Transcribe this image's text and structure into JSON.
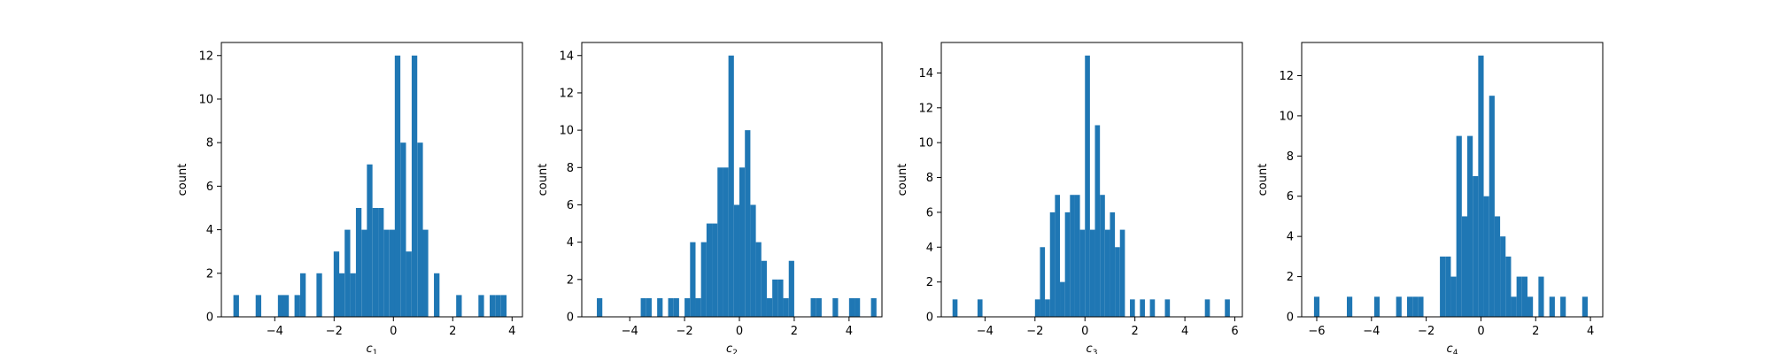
{
  "figure": {
    "background": "#ffffff",
    "bar_color": "#1f77b4"
  },
  "chart_data": [
    {
      "type": "bar",
      "subtype": "histogram",
      "xlabel": "c",
      "xlabel_sub": "1",
      "ylabel": "count",
      "xlim": [
        -5.8,
        4.35
      ],
      "ylim": [
        0,
        12.6
      ],
      "xticks": [
        -4,
        -2,
        0,
        2,
        4
      ],
      "yticks": [
        0,
        2,
        4,
        6,
        8,
        10,
        12
      ],
      "grid": false,
      "bin_width": 0.188,
      "bins": [
        {
          "x": -5.3,
          "count": 1
        },
        {
          "x": -4.55,
          "count": 1
        },
        {
          "x": -3.8,
          "count": 1
        },
        {
          "x": -3.62,
          "count": 1
        },
        {
          "x": -3.24,
          "count": 1
        },
        {
          "x": -3.05,
          "count": 2
        },
        {
          "x": -2.5,
          "count": 2
        },
        {
          "x": -1.92,
          "count": 3
        },
        {
          "x": -1.74,
          "count": 2
        },
        {
          "x": -1.55,
          "count": 4
        },
        {
          "x": -1.36,
          "count": 2
        },
        {
          "x": -1.17,
          "count": 5
        },
        {
          "x": -0.98,
          "count": 4
        },
        {
          "x": -0.8,
          "count": 7
        },
        {
          "x": -0.61,
          "count": 5
        },
        {
          "x": -0.42,
          "count": 5
        },
        {
          "x": -0.23,
          "count": 4
        },
        {
          "x": -0.04,
          "count": 4
        },
        {
          "x": 0.14,
          "count": 12
        },
        {
          "x": 0.33,
          "count": 8
        },
        {
          "x": 0.52,
          "count": 3
        },
        {
          "x": 0.71,
          "count": 12
        },
        {
          "x": 0.9,
          "count": 8
        },
        {
          "x": 1.08,
          "count": 4
        },
        {
          "x": 1.46,
          "count": 2
        },
        {
          "x": 2.21,
          "count": 1
        },
        {
          "x": 2.96,
          "count": 1
        },
        {
          "x": 3.34,
          "count": 1
        },
        {
          "x": 3.53,
          "count": 1
        },
        {
          "x": 3.72,
          "count": 1
        }
      ]
    },
    {
      "type": "bar",
      "subtype": "histogram",
      "xlabel": "c",
      "xlabel_sub": "2",
      "ylabel": "count",
      "xlim": [
        -5.75,
        5.2
      ],
      "ylim": [
        0,
        14.7
      ],
      "xticks": [
        -4,
        -2,
        0,
        2,
        4
      ],
      "yticks": [
        0,
        2,
        4,
        6,
        8,
        10,
        12,
        14
      ],
      "grid": false,
      "bin_width": 0.2,
      "bins": [
        {
          "x": -5.1,
          "count": 1
        },
        {
          "x": -3.5,
          "count": 1
        },
        {
          "x": -3.3,
          "count": 1
        },
        {
          "x": -2.9,
          "count": 1
        },
        {
          "x": -2.5,
          "count": 1
        },
        {
          "x": -2.3,
          "count": 1
        },
        {
          "x": -1.9,
          "count": 1
        },
        {
          "x": -1.7,
          "count": 4
        },
        {
          "x": -1.5,
          "count": 1
        },
        {
          "x": -1.3,
          "count": 4
        },
        {
          "x": -1.1,
          "count": 5
        },
        {
          "x": -0.9,
          "count": 5
        },
        {
          "x": -0.7,
          "count": 8
        },
        {
          "x": -0.5,
          "count": 8
        },
        {
          "x": -0.3,
          "count": 14
        },
        {
          "x": -0.1,
          "count": 6
        },
        {
          "x": 0.1,
          "count": 8
        },
        {
          "x": 0.3,
          "count": 10
        },
        {
          "x": 0.5,
          "count": 6
        },
        {
          "x": 0.7,
          "count": 4
        },
        {
          "x": 0.9,
          "count": 3
        },
        {
          "x": 1.1,
          "count": 1
        },
        {
          "x": 1.3,
          "count": 2
        },
        {
          "x": 1.5,
          "count": 2
        },
        {
          "x": 1.7,
          "count": 1
        },
        {
          "x": 1.9,
          "count": 3
        },
        {
          "x": 2.7,
          "count": 1
        },
        {
          "x": 2.9,
          "count": 1
        },
        {
          "x": 3.5,
          "count": 1
        },
        {
          "x": 4.1,
          "count": 1
        },
        {
          "x": 4.3,
          "count": 1
        },
        {
          "x": 4.9,
          "count": 1
        }
      ]
    },
    {
      "type": "bar",
      "subtype": "histogram",
      "xlabel": "c",
      "xlabel_sub": "3",
      "ylabel": "count",
      "xlim": [
        -5.75,
        6.3
      ],
      "ylim": [
        0,
        15.75
      ],
      "xticks": [
        -4,
        -2,
        0,
        2,
        4,
        6
      ],
      "yticks": [
        0,
        2,
        4,
        6,
        8,
        10,
        12,
        14
      ],
      "grid": false,
      "bin_width": 0.2,
      "bins": [
        {
          "x": -5.2,
          "count": 1
        },
        {
          "x": -4.2,
          "count": 1
        },
        {
          "x": -1.9,
          "count": 1
        },
        {
          "x": -1.7,
          "count": 4
        },
        {
          "x": -1.5,
          "count": 1
        },
        {
          "x": -1.3,
          "count": 6
        },
        {
          "x": -1.1,
          "count": 7
        },
        {
          "x": -0.9,
          "count": 2
        },
        {
          "x": -0.7,
          "count": 6
        },
        {
          "x": -0.5,
          "count": 7
        },
        {
          "x": -0.3,
          "count": 7
        },
        {
          "x": -0.1,
          "count": 5
        },
        {
          "x": 0.1,
          "count": 15
        },
        {
          "x": 0.3,
          "count": 5
        },
        {
          "x": 0.5,
          "count": 11
        },
        {
          "x": 0.7,
          "count": 7
        },
        {
          "x": 0.9,
          "count": 5
        },
        {
          "x": 1.1,
          "count": 6
        },
        {
          "x": 1.3,
          "count": 4
        },
        {
          "x": 1.5,
          "count": 5
        },
        {
          "x": 1.9,
          "count": 1
        },
        {
          "x": 2.3,
          "count": 1
        },
        {
          "x": 2.7,
          "count": 1
        },
        {
          "x": 3.3,
          "count": 1
        },
        {
          "x": 4.9,
          "count": 1
        },
        {
          "x": 5.7,
          "count": 1
        }
      ]
    },
    {
      "type": "bar",
      "subtype": "histogram",
      "xlabel": "c",
      "xlabel_sub": "4",
      "ylabel": "count",
      "xlim": [
        -6.55,
        4.45
      ],
      "ylim": [
        0,
        13.65
      ],
      "xticks": [
        -6,
        -4,
        -2,
        0,
        2,
        4
      ],
      "yticks": [
        0,
        2,
        4,
        6,
        8,
        10,
        12
      ],
      "grid": false,
      "bin_width": 0.2,
      "bins": [
        {
          "x": -6.0,
          "count": 1
        },
        {
          "x": -4.8,
          "count": 1
        },
        {
          "x": -3.8,
          "count": 1
        },
        {
          "x": -3.0,
          "count": 1
        },
        {
          "x": -2.6,
          "count": 1
        },
        {
          "x": -2.4,
          "count": 1
        },
        {
          "x": -2.2,
          "count": 1
        },
        {
          "x": -1.4,
          "count": 3
        },
        {
          "x": -1.2,
          "count": 3
        },
        {
          "x": -1.0,
          "count": 2
        },
        {
          "x": -0.8,
          "count": 9
        },
        {
          "x": -0.6,
          "count": 5
        },
        {
          "x": -0.4,
          "count": 9
        },
        {
          "x": -0.2,
          "count": 7
        },
        {
          "x": 0.0,
          "count": 13
        },
        {
          "x": 0.2,
          "count": 6
        },
        {
          "x": 0.4,
          "count": 11
        },
        {
          "x": 0.6,
          "count": 5
        },
        {
          "x": 0.8,
          "count": 4
        },
        {
          "x": 1.0,
          "count": 3
        },
        {
          "x": 1.2,
          "count": 1
        },
        {
          "x": 1.4,
          "count": 2
        },
        {
          "x": 1.6,
          "count": 2
        },
        {
          "x": 1.8,
          "count": 1
        },
        {
          "x": 2.2,
          "count": 2
        },
        {
          "x": 2.6,
          "count": 1
        },
        {
          "x": 3.0,
          "count": 1
        },
        {
          "x": 3.8,
          "count": 1
        }
      ]
    }
  ]
}
